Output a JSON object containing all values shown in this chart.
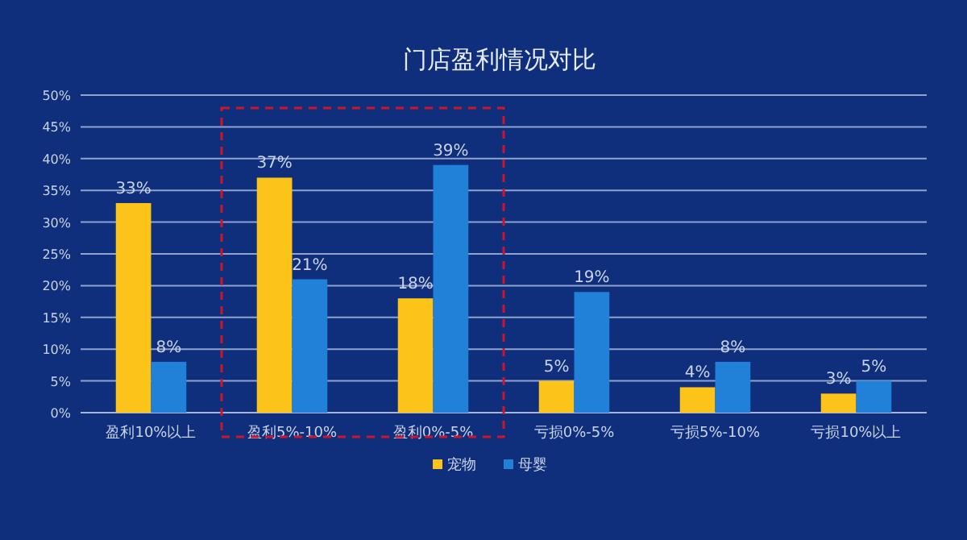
{
  "chart_data": {
    "type": "bar",
    "title": "门店盈利情况对比",
    "categories": [
      "盈利10%以上",
      "盈利5%-10%",
      "盈利0%-5%",
      "亏损0%-5%",
      "亏损5%-10%",
      "亏损10%以上"
    ],
    "series": [
      {
        "name": "宠物",
        "color": "#fcc419",
        "values": [
          33,
          37,
          18,
          5,
          4,
          3
        ],
        "value_labels": [
          "33%",
          "37%",
          "18%",
          "5%",
          "4%",
          "3%"
        ]
      },
      {
        "name": "母婴",
        "color": "#2180d8",
        "values": [
          8,
          21,
          39,
          19,
          8,
          5
        ],
        "value_labels": [
          "8%",
          "21%",
          "39%",
          "19%",
          "8%",
          "5%"
        ]
      }
    ],
    "ylim": [
      0,
      50
    ],
    "yticks": [
      {
        "value": 0,
        "label": "0%"
      },
      {
        "value": 5,
        "label": "5%"
      },
      {
        "value": 10,
        "label": "10%"
      },
      {
        "value": 15,
        "label": "15%"
      },
      {
        "value": 20,
        "label": "20%"
      },
      {
        "value": 25,
        "label": "25%"
      },
      {
        "value": 30,
        "label": "30%"
      },
      {
        "value": 35,
        "label": "35%"
      },
      {
        "value": 40,
        "label": "40%"
      },
      {
        "value": 45,
        "label": "45%"
      },
      {
        "value": 50,
        "label": "50%"
      }
    ],
    "grid": "y",
    "legend": "bottom"
  }
}
